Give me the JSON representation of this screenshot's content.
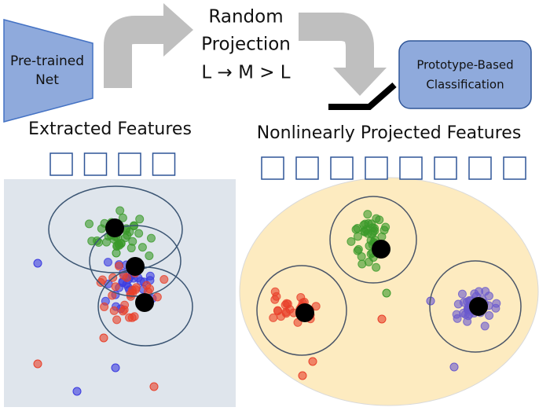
{
  "pretrained_net": {
    "lines": [
      "Pre-trained",
      "Net"
    ]
  },
  "projection": {
    "lines": [
      "Random",
      "Projection",
      "L → M > L"
    ]
  },
  "classifier": {
    "lines": [
      "Prototype-Based",
      "Classification"
    ]
  },
  "left_panel": {
    "title": "Extracted Features"
  },
  "right_panel": {
    "title": "Nonlinearly Projected Features"
  }
}
